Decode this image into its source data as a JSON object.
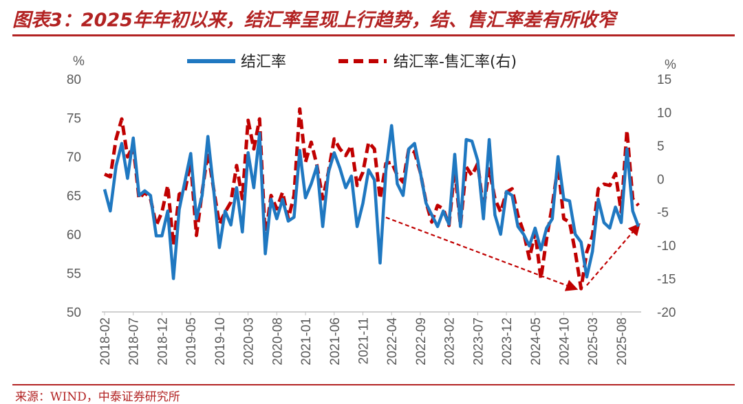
{
  "title": "图表3：2025年年初以来，结汇率呈现上行趋势，结、售汇率差有所收窄",
  "source": "来源：WIND，中泰证券研究所",
  "colors": {
    "blue": "#1f78c1",
    "red": "#c00000",
    "axis": "#595959",
    "title": "#b22222"
  },
  "chart_data": {
    "type": "line",
    "title": "2025年年初以来，结汇率呈现上行趋势，结、售汇率差有所收窄",
    "left_axis": {
      "unit": "%",
      "ylim": [
        50,
        80
      ],
      "ticks": [
        50,
        55,
        60,
        65,
        70,
        75,
        80
      ]
    },
    "right_axis": {
      "unit": "%",
      "ylim": [
        -20,
        15
      ],
      "ticks": [
        -20,
        -15,
        -10,
        -5,
        0,
        5,
        10,
        15
      ]
    },
    "x_tick_labels": [
      "2018-02",
      "2018-07",
      "2018-12",
      "2019-05",
      "2019-10",
      "2020-03",
      "2020-08",
      "2021-01",
      "2021-06",
      "2021-11",
      "2022-04",
      "2022-09",
      "2023-02",
      "2023-07",
      "2023-12",
      "2024-05",
      "2024-10",
      "2025-03",
      "2025-08"
    ],
    "legend_position": "top",
    "series": [
      {
        "name": "结汇率",
        "axis": "left",
        "style": "solid",
        "values": [
          65.8,
          63.0,
          68.8,
          71.7,
          67.2,
          72.4,
          65.0,
          65.6,
          65.0,
          59.8,
          59.8,
          63.0,
          54.3,
          63.2,
          66.8,
          70.4,
          62.0,
          65.0,
          72.6,
          65.8,
          58.3,
          63.0,
          61.2,
          66.0,
          60.3,
          70.5,
          66.0,
          73.0,
          57.5,
          64.5,
          62.0,
          64.5,
          61.7,
          62.2,
          70.8,
          64.7,
          66.5,
          68.8,
          61.0,
          68.0,
          70.5,
          68.5,
          66.0,
          67.5,
          61.0,
          64.0,
          68.3,
          67.0,
          56.3,
          68.2,
          74.0,
          66.5,
          65.0,
          71.0,
          71.7,
          68.0,
          64.0,
          62.5,
          61.0,
          63.0,
          61.3,
          70.3,
          61.0,
          72.2,
          72.0,
          69.5,
          62.0,
          72.2,
          62.5,
          60.0,
          65.5,
          65.0,
          61.0,
          60.0,
          58.5,
          60.8,
          58.0,
          60.8,
          62.0,
          70.0,
          64.5,
          64.3,
          60.0,
          59.0,
          54.5,
          57.8,
          64.5,
          61.5,
          60.8,
          63.5,
          61.5,
          71.0,
          63.0,
          61.0
        ]
      },
      {
        "name": "结汇率-售汇率(右)",
        "axis": "right",
        "style": "dashed",
        "values": [
          0.7,
          0.3,
          6.0,
          9.0,
          3.3,
          5.0,
          -3.0,
          -2.0,
          -3.0,
          -7.0,
          -5.0,
          -1.0,
          -10.0,
          -2.3,
          -1.8,
          2.5,
          -8.5,
          -2.0,
          4.0,
          -1.5,
          -6.8,
          -5.0,
          -3.5,
          2.0,
          -3.0,
          8.8,
          4.5,
          9.0,
          -9.0,
          -2.5,
          -4.5,
          -2.0,
          -6.0,
          -2.5,
          10.5,
          2.5,
          5.5,
          2.0,
          -3.0,
          1.0,
          6.0,
          4.5,
          3.5,
          5.0,
          -1.0,
          1.0,
          5.5,
          4.5,
          -3.0,
          2.3,
          2.5,
          0.5,
          -0.5,
          4.5,
          4.0,
          1.0,
          -3.5,
          -6.5,
          -4.0,
          -4.5,
          -7.0,
          1.5,
          -7.0,
          1.8,
          0.5,
          2.3,
          -4.5,
          1.5,
          -3.0,
          -5.0,
          -2.0,
          -1.5,
          -5.5,
          -8.0,
          -12.0,
          -8.0,
          -15.0,
          -9.0,
          -4.0,
          2.0,
          -6.0,
          -6.5,
          -11.0,
          -16.5,
          -11.0,
          -8.5,
          -1.5,
          -0.8,
          -1.0,
          0.8,
          -5.0,
          7.3,
          -3.0,
          -4.0
        ]
      }
    ],
    "annotations": [
      {
        "type": "trend-arrow",
        "description": "下行趋势",
        "from": {
          "x_index": 49,
          "value_right": -5.8
        },
        "to": {
          "x_index": 82,
          "value_right": -16.5
        }
      },
      {
        "type": "trend-arrow",
        "description": "上行趋势",
        "from": {
          "x_index": 84,
          "value_right": -16.0
        },
        "to": {
          "x_index": 93,
          "value_right": -7.0
        }
      }
    ]
  }
}
